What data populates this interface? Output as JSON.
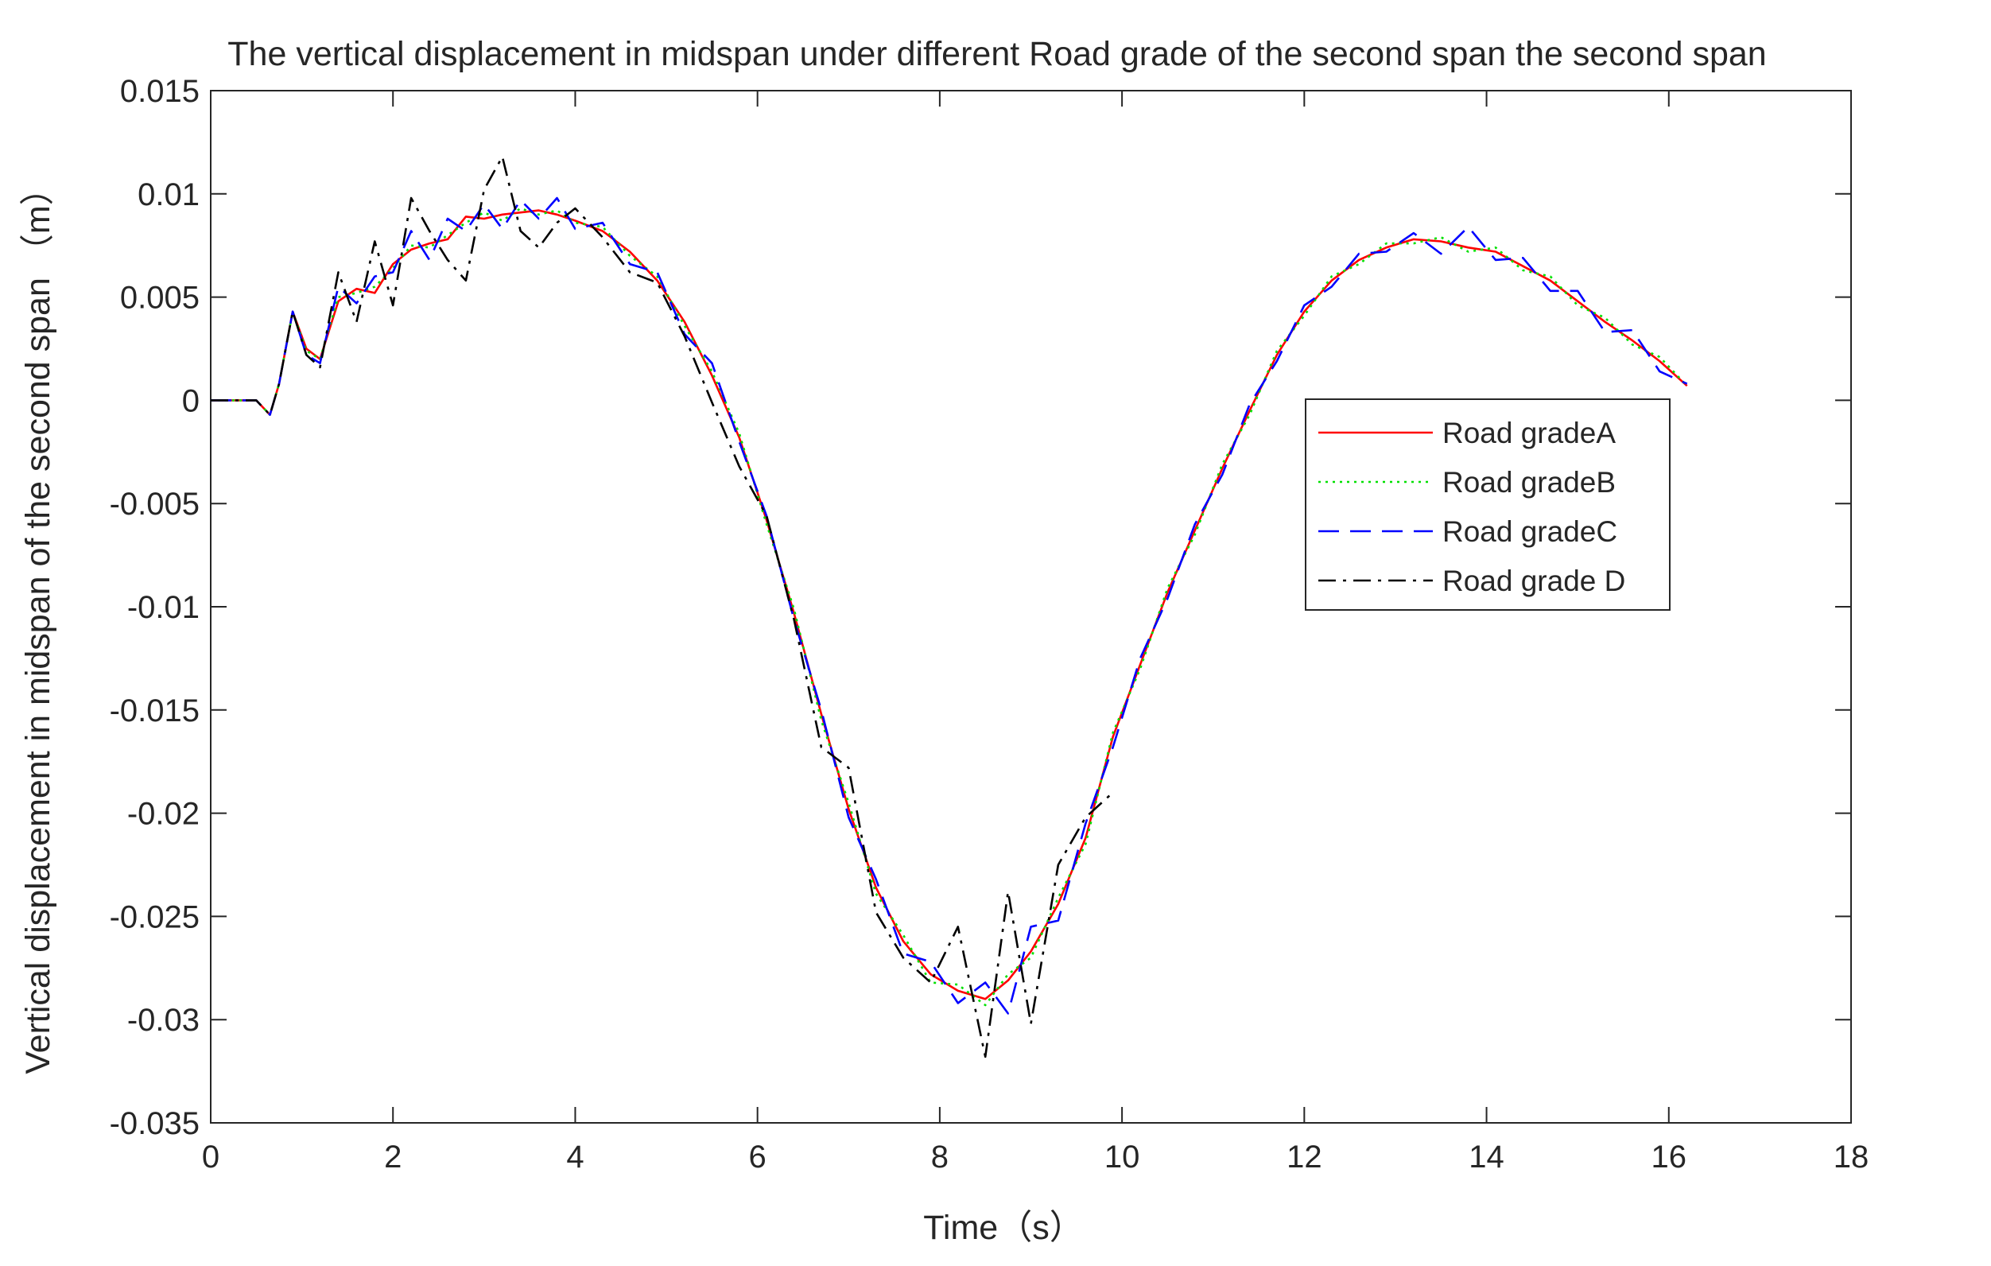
{
  "chart_data": {
    "type": "line",
    "title": "The vertical displacement in midspan under different Road grade of the second span the second span",
    "xlabel": "Time（s）",
    "ylabel": "Vertical displacement in midspan of the second span （m）",
    "xlim": [
      0,
      18
    ],
    "ylim": [
      -0.035,
      0.015
    ],
    "xticks": [
      0,
      2,
      4,
      6,
      8,
      10,
      12,
      14,
      16,
      18
    ],
    "xtick_labels": [
      "0",
      "2",
      "4",
      "6",
      "8",
      "10",
      "12",
      "14",
      "16",
      "18"
    ],
    "yticks": [
      0.015,
      0.01,
      0.005,
      0,
      -0.005,
      -0.01,
      -0.015,
      -0.02,
      -0.025,
      -0.03,
      -0.035
    ],
    "ytick_labels": [
      "0.015",
      "0.01",
      "0.005",
      "0",
      "-0.005",
      "-0.01",
      "-0.015",
      "-0.02",
      "-0.025",
      "-0.03",
      "-0.035"
    ],
    "grid": false,
    "legend_position": "right, slightly above middle",
    "series": [
      {
        "name": "Road gradeA",
        "color": "#ff0000",
        "style": "solid",
        "points": [
          [
            0,
            0
          ],
          [
            0.5,
            0
          ],
          [
            0.65,
            -0.0007
          ],
          [
            0.75,
            0.0008
          ],
          [
            0.9,
            0.0043
          ],
          [
            1.05,
            0.0025
          ],
          [
            1.2,
            0.002
          ],
          [
            1.4,
            0.0048
          ],
          [
            1.6,
            0.0054
          ],
          [
            1.8,
            0.0052
          ],
          [
            2.0,
            0.0066
          ],
          [
            2.2,
            0.0073
          ],
          [
            2.4,
            0.0076
          ],
          [
            2.6,
            0.0078
          ],
          [
            2.8,
            0.0089
          ],
          [
            3.0,
            0.0088
          ],
          [
            3.2,
            0.009
          ],
          [
            3.4,
            0.0091
          ],
          [
            3.6,
            0.0092
          ],
          [
            3.8,
            0.009
          ],
          [
            4.0,
            0.0087
          ],
          [
            4.3,
            0.0082
          ],
          [
            4.6,
            0.0072
          ],
          [
            4.9,
            0.0058
          ],
          [
            5.2,
            0.0038
          ],
          [
            5.5,
            0.0012
          ],
          [
            5.8,
            -0.0018
          ],
          [
            6.1,
            -0.0058
          ],
          [
            6.4,
            -0.0103
          ],
          [
            6.7,
            -0.0152
          ],
          [
            7.0,
            -0.0198
          ],
          [
            7.3,
            -0.0236
          ],
          [
            7.6,
            -0.0262
          ],
          [
            7.9,
            -0.0278
          ],
          [
            8.2,
            -0.0286
          ],
          [
            8.5,
            -0.029
          ],
          [
            8.75,
            -0.0281
          ],
          [
            9.0,
            -0.0267
          ],
          [
            9.3,
            -0.0244
          ],
          [
            9.6,
            -0.0212
          ],
          [
            9.9,
            -0.0163
          ],
          [
            10.2,
            -0.0128
          ],
          [
            10.5,
            -0.0093
          ],
          [
            10.8,
            -0.0063
          ],
          [
            11.1,
            -0.0033
          ],
          [
            11.4,
            -0.0005
          ],
          [
            11.7,
            0.0022
          ],
          [
            12.0,
            0.0043
          ],
          [
            12.3,
            0.0058
          ],
          [
            12.6,
            0.0068
          ],
          [
            12.9,
            0.0074
          ],
          [
            13.2,
            0.0078
          ],
          [
            13.5,
            0.0077
          ],
          [
            13.8,
            0.0074
          ],
          [
            14.1,
            0.0072
          ],
          [
            14.4,
            0.0065
          ],
          [
            14.7,
            0.0058
          ],
          [
            15.0,
            0.0048
          ],
          [
            15.3,
            0.0038
          ],
          [
            15.6,
            0.0029
          ],
          [
            15.9,
            0.0019
          ],
          [
            16.2,
            0.0007
          ]
        ]
      },
      {
        "name": "Road gradeB",
        "color": "#00e000",
        "style": "dotted",
        "points": [
          [
            0,
            0
          ],
          [
            0.5,
            0
          ],
          [
            0.65,
            -0.0007
          ],
          [
            0.75,
            0.0008
          ],
          [
            0.9,
            0.0043
          ],
          [
            1.05,
            0.0024
          ],
          [
            1.2,
            0.002
          ],
          [
            1.4,
            0.005
          ],
          [
            1.6,
            0.0052
          ],
          [
            1.8,
            0.0055
          ],
          [
            2.0,
            0.0064
          ],
          [
            2.2,
            0.0075
          ],
          [
            2.4,
            0.0074
          ],
          [
            2.6,
            0.008
          ],
          [
            2.8,
            0.0086
          ],
          [
            3.0,
            0.0091
          ],
          [
            3.2,
            0.0087
          ],
          [
            3.4,
            0.0093
          ],
          [
            3.6,
            0.009
          ],
          [
            3.8,
            0.0092
          ],
          [
            4.0,
            0.0086
          ],
          [
            4.3,
            0.0084
          ],
          [
            4.6,
            0.007
          ],
          [
            4.9,
            0.006
          ],
          [
            5.2,
            0.0036
          ],
          [
            5.5,
            0.0014
          ],
          [
            5.8,
            -0.0016
          ],
          [
            6.1,
            -0.006
          ],
          [
            6.4,
            -0.0101
          ],
          [
            6.7,
            -0.0155
          ],
          [
            7.0,
            -0.0195
          ],
          [
            7.3,
            -0.0239
          ],
          [
            7.6,
            -0.0259
          ],
          [
            7.9,
            -0.0282
          ],
          [
            8.2,
            -0.0283
          ],
          [
            8.5,
            -0.0293
          ],
          [
            8.75,
            -0.0278
          ],
          [
            9.0,
            -0.027
          ],
          [
            9.3,
            -0.0241
          ],
          [
            9.6,
            -0.0215
          ],
          [
            9.9,
            -0.0161
          ],
          [
            10.2,
            -0.013
          ],
          [
            10.5,
            -0.0091
          ],
          [
            10.8,
            -0.0065
          ],
          [
            11.1,
            -0.0031
          ],
          [
            11.4,
            -0.0007
          ],
          [
            11.7,
            0.0024
          ],
          [
            12.0,
            0.0041
          ],
          [
            12.3,
            0.006
          ],
          [
            12.6,
            0.0066
          ],
          [
            12.9,
            0.0076
          ],
          [
            13.2,
            0.0076
          ],
          [
            13.5,
            0.0079
          ],
          [
            13.8,
            0.0072
          ],
          [
            14.1,
            0.0074
          ],
          [
            14.4,
            0.0063
          ],
          [
            14.7,
            0.006
          ],
          [
            15.0,
            0.0046
          ],
          [
            15.3,
            0.004
          ],
          [
            15.6,
            0.0027
          ],
          [
            15.9,
            0.0021
          ],
          [
            16.2,
            0.0007
          ]
        ]
      },
      {
        "name": "Road gradeC",
        "color": "#0000ff",
        "style": "dashed",
        "points": [
          [
            0,
            0
          ],
          [
            0.5,
            0
          ],
          [
            0.65,
            -0.0007
          ],
          [
            0.75,
            0.0008
          ],
          [
            0.9,
            0.0043
          ],
          [
            1.05,
            0.0022
          ],
          [
            1.2,
            0.0018
          ],
          [
            1.4,
            0.0055
          ],
          [
            1.6,
            0.0047
          ],
          [
            1.8,
            0.006
          ],
          [
            2.0,
            0.0062
          ],
          [
            2.2,
            0.0082
          ],
          [
            2.4,
            0.0068
          ],
          [
            2.6,
            0.0088
          ],
          [
            2.8,
            0.0082
          ],
          [
            3.0,
            0.0095
          ],
          [
            3.2,
            0.0083
          ],
          [
            3.4,
            0.0097
          ],
          [
            3.6,
            0.0088
          ],
          [
            3.8,
            0.0098
          ],
          [
            4.0,
            0.0083
          ],
          [
            4.3,
            0.0086
          ],
          [
            4.6,
            0.0066
          ],
          [
            4.9,
            0.0062
          ],
          [
            5.2,
            0.0032
          ],
          [
            5.5,
            0.0018
          ],
          [
            5.8,
            -0.002
          ],
          [
            6.1,
            -0.0056
          ],
          [
            6.4,
            -0.0106
          ],
          [
            6.7,
            -0.015
          ],
          [
            7.0,
            -0.0202
          ],
          [
            7.3,
            -0.0232
          ],
          [
            7.6,
            -0.0268
          ],
          [
            7.9,
            -0.0272
          ],
          [
            8.2,
            -0.0292
          ],
          [
            8.5,
            -0.0282
          ],
          [
            8.75,
            -0.0297
          ],
          [
            9.0,
            -0.0255
          ],
          [
            9.3,
            -0.0252
          ],
          [
            9.6,
            -0.0205
          ],
          [
            9.9,
            -0.0168
          ],
          [
            10.2,
            -0.0125
          ],
          [
            10.5,
            -0.0096
          ],
          [
            10.8,
            -0.006
          ],
          [
            11.1,
            -0.0036
          ],
          [
            11.4,
            -0.0002
          ],
          [
            11.7,
            0.0019
          ],
          [
            12.0,
            0.0046
          ],
          [
            12.3,
            0.0055
          ],
          [
            12.6,
            0.0071
          ],
          [
            12.9,
            0.0072
          ],
          [
            13.2,
            0.0081
          ],
          [
            13.5,
            0.0071
          ],
          [
            13.8,
            0.0084
          ],
          [
            14.1,
            0.0068
          ],
          [
            14.4,
            0.0069
          ],
          [
            14.7,
            0.0053
          ],
          [
            15.0,
            0.0053
          ],
          [
            15.3,
            0.0033
          ],
          [
            15.6,
            0.0034
          ],
          [
            15.9,
            0.0014
          ],
          [
            16.2,
            0.0008
          ]
        ]
      },
      {
        "name": "Road grade D",
        "color": "#000000",
        "style": "dashdot",
        "points": [
          [
            0,
            0
          ],
          [
            0.5,
            0
          ],
          [
            0.65,
            -0.0007
          ],
          [
            0.75,
            0.0008
          ],
          [
            0.9,
            0.0043
          ],
          [
            1.05,
            0.0022
          ],
          [
            1.2,
            0.0016
          ],
          [
            1.4,
            0.0062
          ],
          [
            1.6,
            0.0038
          ],
          [
            1.8,
            0.0077
          ],
          [
            2.0,
            0.0046
          ],
          [
            2.2,
            0.0098
          ],
          [
            2.4,
            0.0082
          ],
          [
            2.6,
            0.0068
          ],
          [
            2.8,
            0.0058
          ],
          [
            3.0,
            0.0102
          ],
          [
            3.2,
            0.0118
          ],
          [
            3.4,
            0.0082
          ],
          [
            3.6,
            0.0074
          ],
          [
            3.8,
            0.0086
          ],
          [
            4.0,
            0.0093
          ],
          [
            4.3,
            0.0079
          ],
          [
            4.6,
            0.0062
          ],
          [
            4.9,
            0.0057
          ],
          [
            5.2,
            0.0031
          ],
          [
            5.5,
            -0.0001
          ],
          [
            5.8,
            -0.0032
          ],
          [
            6.1,
            -0.0056
          ],
          [
            6.4,
            -0.0106
          ],
          [
            6.7,
            -0.0168
          ],
          [
            7.0,
            -0.0178
          ],
          [
            7.3,
            -0.0248
          ],
          [
            7.6,
            -0.027
          ],
          [
            7.9,
            -0.0282
          ],
          [
            8.2,
            -0.0255
          ],
          [
            8.5,
            -0.0318
          ],
          [
            8.75,
            -0.0238
          ],
          [
            9.0,
            -0.0302
          ],
          [
            9.3,
            -0.0225
          ],
          [
            9.6,
            -0.0202
          ],
          [
            9.9,
            -0.019
          ]
        ]
      }
    ]
  }
}
